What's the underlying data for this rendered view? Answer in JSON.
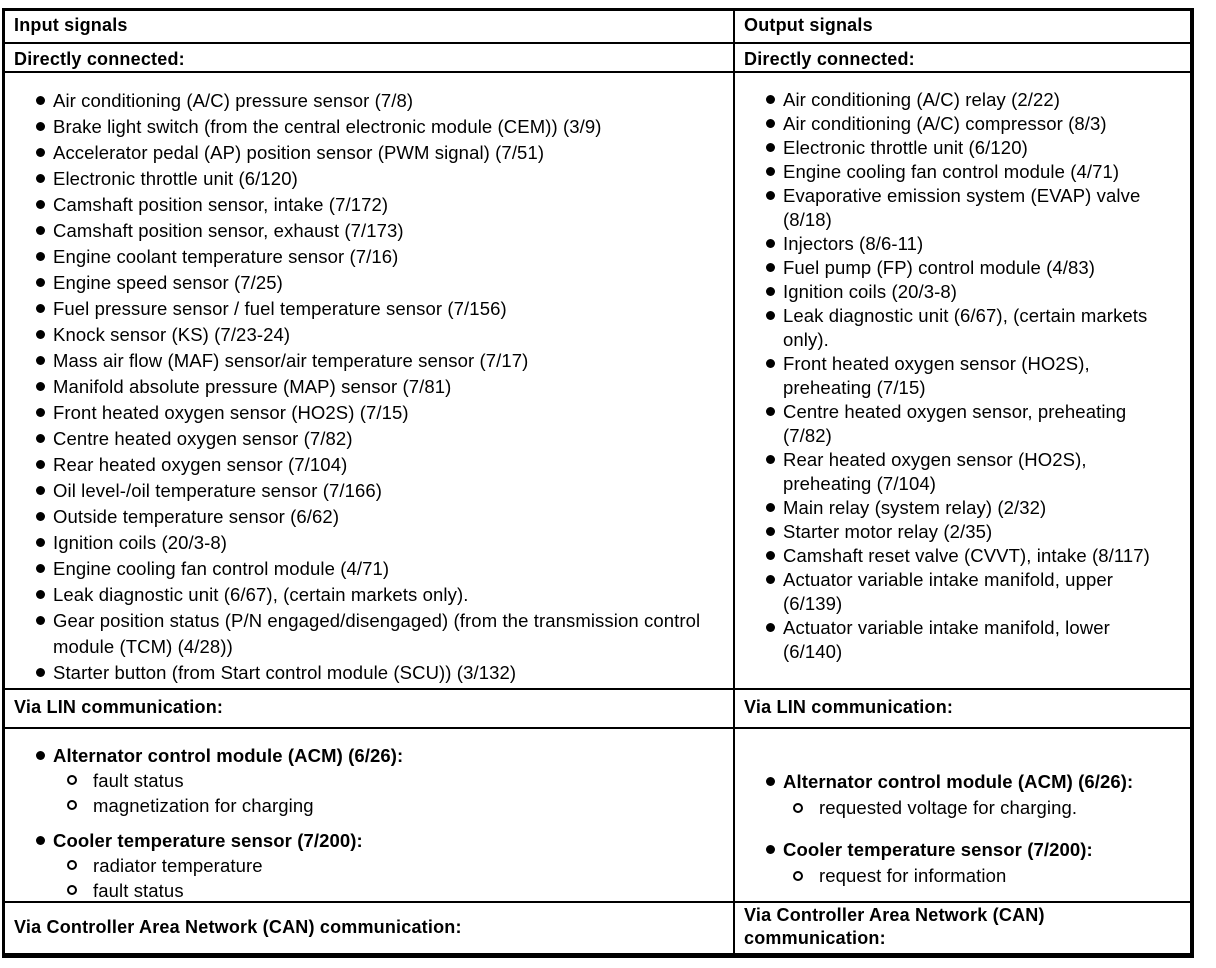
{
  "table": {
    "input_column": {
      "header": "Input signals",
      "directly_connected_label": "Directly connected:",
      "directly_connected_items": [
        "Air conditioning (A/C) pressure sensor (7/8)",
        "Brake light switch (from the central electronic module (CEM)) (3/9)",
        "Accelerator pedal (AP) position sensor (PWM signal) (7/51)",
        "Electronic throttle unit (6/120)",
        "Camshaft position sensor, intake (7/172)",
        "Camshaft position sensor, exhaust (7/173)",
        "Engine coolant temperature sensor (7/16)",
        "Engine speed sensor (7/25)",
        "Fuel pressure sensor / fuel temperature sensor (7/156)",
        "Knock sensor (KS) (7/23-24)",
        "Mass air flow (MAF) sensor/air temperature sensor (7/17)",
        "Manifold absolute pressure (MAP) sensor (7/81)",
        "Front heated oxygen sensor (HO2S) (7/15)",
        "Centre heated oxygen sensor (7/82)",
        "Rear heated oxygen sensor (7/104)",
        "Oil level-/oil temperature sensor (7/166)",
        "Outside temperature sensor (6/62)",
        "Ignition coils (20/3-8)",
        "Engine cooling fan control module (4/71)",
        "Leak diagnostic unit (6/67), (certain markets only).",
        "Gear position status (P/N engaged/disengaged) (from the transmission control module (TCM) (4/28))",
        "Starter button (from Start control module (SCU)) (3/132)"
      ],
      "lin_label": "Via LIN communication:",
      "lin_groups": [
        {
          "title": "Alternator control module (ACM) (6/26):",
          "sub_items": [
            "fault status",
            "magnetization for charging"
          ]
        },
        {
          "title": "Cooler temperature sensor (7/200):",
          "sub_items": [
            "radiator temperature",
            "fault status"
          ]
        }
      ],
      "can_label": "Via Controller Area Network (CAN) communication:"
    },
    "output_column": {
      "header": "Output signals",
      "directly_connected_label": "Directly connected:",
      "directly_connected_items": [
        "Air conditioning (A/C) relay (2/22)",
        "Air conditioning (A/C) compressor (8/3)",
        "Electronic throttle unit (6/120)",
        "Engine cooling fan control module (4/71)",
        "Evaporative emission system (EVAP) valve (8/18)",
        "Injectors (8/6-11)",
        "Fuel pump (FP) control module (4/83)",
        "Ignition coils (20/3-8)",
        "Leak diagnostic unit (6/67), (certain markets only).",
        "Front heated oxygen sensor (HO2S), preheating (7/15)",
        "Centre heated oxygen sensor, preheating (7/82)",
        "Rear heated oxygen sensor (HO2S), preheating (7/104)",
        "Main relay (system relay) (2/32)",
        "Starter motor relay (2/35)",
        "Camshaft reset valve (CVVT), intake (8/117)",
        "Actuator variable intake manifold, upper (6/139)",
        "Actuator variable intake manifold, lower (6/140)"
      ],
      "lin_label": "Via LIN communication:",
      "lin_groups": [
        {
          "title": "Alternator control module (ACM) (6/26):",
          "sub_items": [
            "requested voltage for charging."
          ]
        },
        {
          "title": "Cooler temperature sensor (7/200):",
          "sub_items": [
            "request for information"
          ]
        }
      ],
      "can_label": "Via Controller Area Network (CAN) communication:"
    }
  }
}
